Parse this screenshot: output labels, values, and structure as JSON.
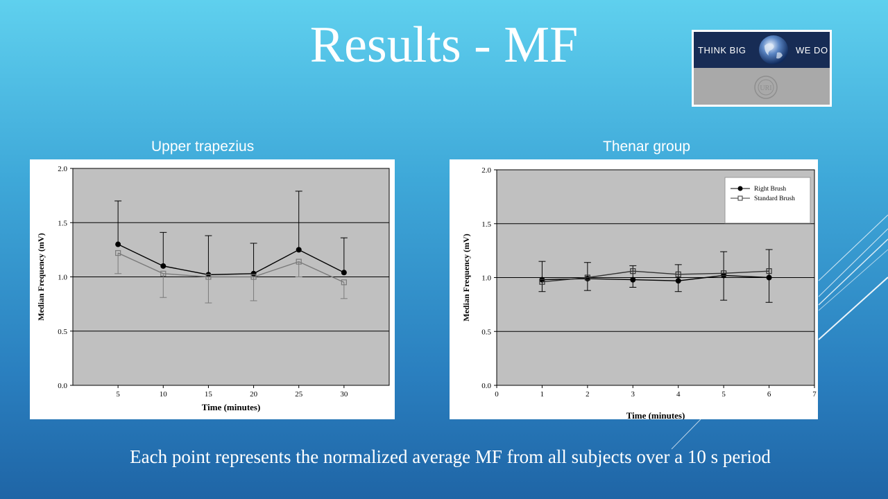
{
  "slide": {
    "title": "Results - MF",
    "caption": "Each point represents the normalized average MF from all subjects over a 10 s period"
  },
  "logo": {
    "left_text": "THINK BIG",
    "right_text": "WE DO",
    "seal_text": "URI"
  },
  "colors": {
    "plot_background": "#c0c0c0",
    "series_dark": "#000000",
    "series_light": "#7a7a7a"
  },
  "chart_data": [
    {
      "type": "line",
      "title": "Upper trapezius",
      "xlabel": "Time (minutes)",
      "ylabel": "Median Frequency (mV)",
      "x_ticks": [
        "5",
        "10",
        "15",
        "20",
        "25",
        "30"
      ],
      "y_ticks": [
        "0.0",
        "0.5",
        "1.0",
        "1.5",
        "2.0"
      ],
      "xlim": [
        0,
        35
      ],
      "ylim": [
        0,
        2.0
      ],
      "grid": "horizontal",
      "legend": "none",
      "x": [
        5,
        10,
        15,
        20,
        25,
        30
      ],
      "series": [
        {
          "marker": "filled-circle",
          "color": "#000000",
          "values": [
            1.3,
            1.1,
            1.02,
            1.03,
            1.25,
            1.04
          ],
          "error_plus": [
            0.4,
            0.31,
            0.36,
            0.28,
            0.54,
            0.32
          ],
          "error_minus": [
            0,
            0,
            0,
            0,
            0,
            0
          ]
        },
        {
          "marker": "open-square",
          "color": "#7a7a7a",
          "values": [
            1.22,
            1.03,
            1.0,
            1.0,
            1.14,
            0.95
          ],
          "error_plus": [
            0,
            0,
            0,
            0,
            0,
            0
          ],
          "error_minus": [
            0.19,
            0.22,
            0.24,
            0.22,
            0.14,
            0.15
          ]
        }
      ]
    },
    {
      "type": "line",
      "title": "Thenar group",
      "xlabel": "Time (minutes)",
      "ylabel": "Median Frequency (mV)",
      "x_ticks": [
        "0",
        "1",
        "2",
        "3",
        "4",
        "5",
        "6",
        "7"
      ],
      "y_ticks": [
        "0.0",
        "0.5",
        "1.0",
        "1.5",
        "2.0"
      ],
      "xlim": [
        0,
        7
      ],
      "ylim": [
        0,
        2.0
      ],
      "grid": "horizontal",
      "legend": "top-right",
      "x": [
        1,
        2,
        3,
        4,
        5,
        6
      ],
      "series": [
        {
          "name": "Right Brush",
          "marker": "filled-circle",
          "color": "#000000",
          "values": [
            0.98,
            0.99,
            0.98,
            0.97,
            1.02,
            1.0
          ],
          "error_plus": [
            0.17,
            0.15,
            0.13,
            0.15,
            0.22,
            0.26
          ],
          "error_minus": [
            0.11,
            0.11,
            0.07,
            0.1,
            0.23,
            0.23
          ]
        },
        {
          "name": "Standard Brush",
          "marker": "open-square",
          "color": "#333333",
          "values": [
            0.96,
            1.0,
            1.06,
            1.03,
            1.04,
            1.06
          ],
          "error_plus": [
            0,
            0,
            0,
            0,
            0,
            0
          ],
          "error_minus": [
            0,
            0,
            0,
            0,
            0,
            0
          ]
        }
      ]
    }
  ]
}
